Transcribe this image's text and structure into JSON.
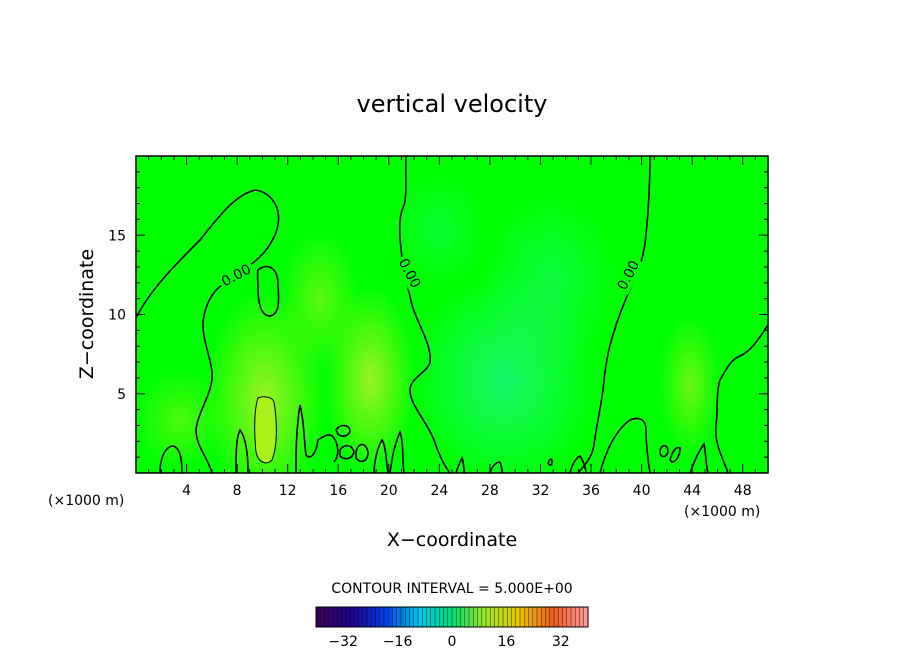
{
  "chart_data": {
    "type": "heatmap",
    "title": "vertical velocity",
    "xlabel": "X−coordinate",
    "ylabel": "Z−coordinate",
    "x_unit_note": "(×1000 m)",
    "x_unit_note_right": "(×1000 m)",
    "xlim": [
      0,
      50
    ],
    "ylim": [
      0,
      20
    ],
    "x_ticks": [
      4,
      8,
      12,
      16,
      20,
      24,
      28,
      32,
      36,
      40,
      44,
      48
    ],
    "y_ticks": [
      5,
      10,
      15
    ],
    "contour_interval_label": "CONTOUR INTERVAL = 5.000E+00",
    "contour_labels": [
      "0.00",
      "0.00",
      "0.00"
    ],
    "colorbar": {
      "ticks": [
        "−32",
        "−16",
        "0",
        "16",
        "32"
      ],
      "tick_values": [
        -32,
        -16,
        0,
        16,
        32
      ],
      "range": [
        -40,
        40
      ]
    },
    "colors": {
      "background_field": "#00ff00",
      "contour": "#000000"
    }
  }
}
